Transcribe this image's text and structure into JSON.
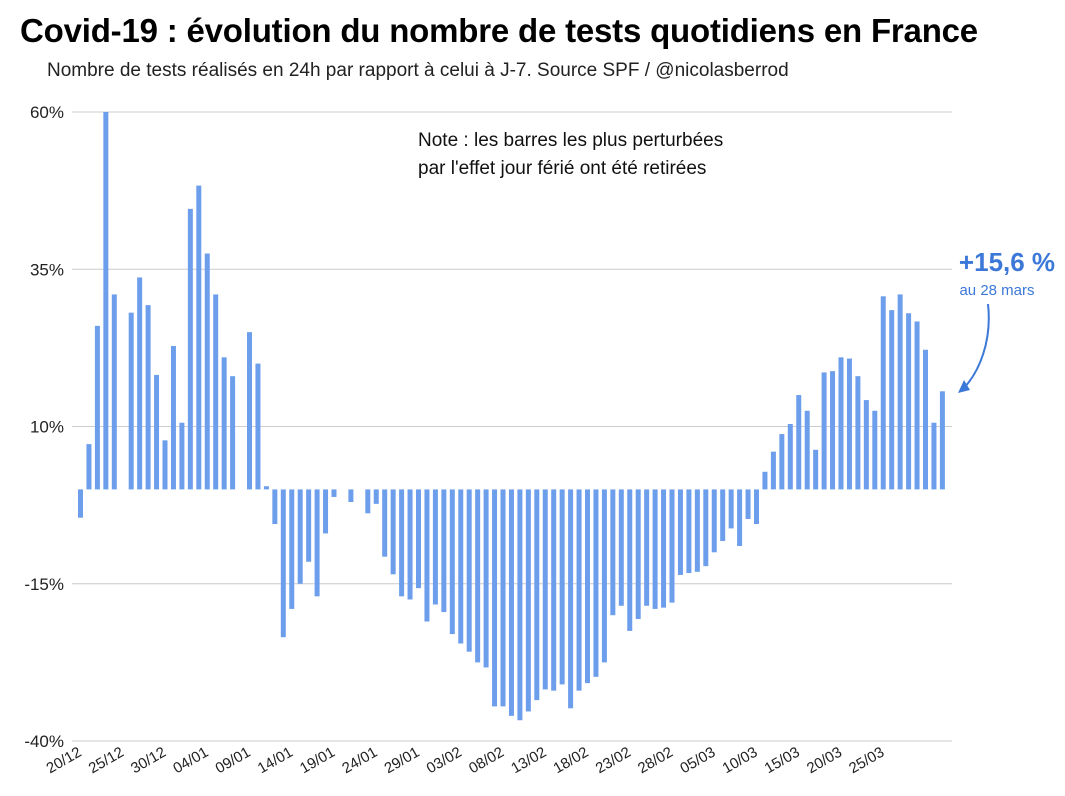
{
  "title": "Covid-19 : évolution du nombre de tests quotidiens en France",
  "subtitle": "Nombre de tests réalisés en 24h par rapport à celui à J-7. Source SPF / @nicolasberrod",
  "colors": {
    "bar": "#6d9eeb",
    "annotation": "#3c78d8",
    "grid": "#cccccc"
  },
  "chart_data": {
    "type": "bar",
    "ylim": [
      -40,
      60
    ],
    "y_ticks": [
      60,
      35,
      10,
      -15,
      -40
    ],
    "y_tick_labels": [
      "60%",
      "35%",
      "10%",
      "-15%",
      "-40%"
    ],
    "x_tick_labels": [
      "20/12",
      "25/12",
      "30/12",
      "04/01",
      "09/01",
      "14/01",
      "19/01",
      "24/01",
      "29/01",
      "03/02",
      "08/02",
      "13/02",
      "18/02",
      "23/02",
      "28/02",
      "05/03",
      "10/03",
      "15/03",
      "20/03",
      "25/03"
    ],
    "grid": true,
    "series": [
      {
        "values": [
          -4.5,
          7.2,
          26.0,
          60.0,
          31.0,
          null,
          28.1,
          33.7,
          29.3,
          18.2,
          7.8,
          22.8,
          10.6,
          44.6,
          48.3,
          37.5,
          31.0,
          21.0,
          18.0,
          null,
          25.0,
          20.0,
          0.5,
          -5.5,
          -23.5,
          -19.0,
          -15.0,
          -11.5,
          -17.0,
          -7.0,
          -1.2,
          null,
          -2.0,
          null,
          -3.8,
          -2.3,
          -10.7,
          -13.5,
          -17.0,
          -17.5,
          -15.7,
          -21.0,
          -18.3,
          -19.5,
          -23.0,
          -24.5,
          -25.8,
          -27.5,
          -28.3,
          -34.5,
          -34.5,
          -36.0,
          -36.7,
          -35.3,
          -33.5,
          -31.8,
          -32.0,
          -31.0,
          -34.8,
          -32.0,
          -30.8,
          -29.8,
          -27.5,
          -20.0,
          -18.5,
          -22.5,
          -20.6,
          -18.5,
          -19.0,
          -18.8,
          -18.0,
          -13.6,
          -13.3,
          -13.1,
          -12.2,
          -10.0,
          -8.2,
          -6.2,
          -9.0,
          -4.7,
          -5.5,
          2.8,
          6.0,
          8.8,
          10.4,
          15.0,
          12.5,
          6.3,
          18.6,
          18.8,
          21.0,
          20.8,
          18.0,
          14.2,
          12.5,
          30.7,
          28.5,
          31.0,
          28.0,
          26.7,
          22.2,
          10.6,
          15.6
        ]
      }
    ],
    "note": [
      "Note : les barres les plus perturbées",
      "par l'effet jour férié ont été retirées"
    ],
    "annotation": {
      "value_text": "+15,6 %",
      "date_text": "au 28 mars"
    }
  }
}
